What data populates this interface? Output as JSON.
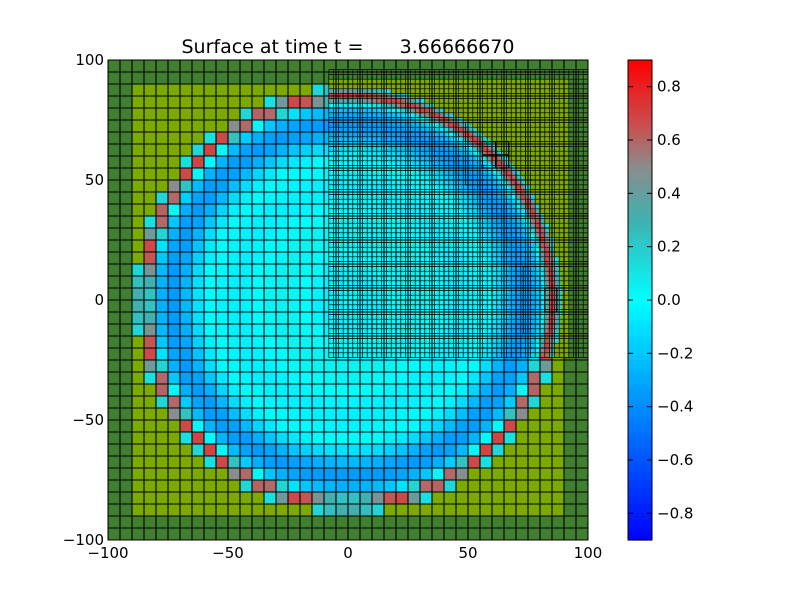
{
  "chart_data": {
    "type": "heatmap",
    "title": "Surface at time t =      3.66666670",
    "xlabel": "",
    "ylabel": "",
    "xlim": [
      -100,
      100
    ],
    "ylim": [
      -100,
      100
    ],
    "x_ticks": [
      -100,
      -50,
      0,
      50,
      100
    ],
    "y_ticks": [
      -100,
      -50,
      0,
      50,
      100
    ],
    "x_tick_labels": [
      "−100",
      "−50",
      "0",
      "50",
      "100"
    ],
    "y_tick_labels": [
      "−100",
      "−50",
      "0",
      "50",
      "100"
    ],
    "colorbar": {
      "vmin": -0.9,
      "vmax": 0.9,
      "ticks": [
        0.8,
        0.6,
        0.4,
        0.2,
        0.0,
        -0.2,
        -0.4,
        -0.6,
        -0.8
      ],
      "tick_labels": [
        "0.8",
        "0.6",
        "0.4",
        "0.2",
        "0.0",
        "−0.2",
        "−0.4",
        "−0.6",
        "−0.8"
      ],
      "colormap": [
        [
          -0.9,
          "#0000ff"
        ],
        [
          -0.3,
          "#00aaff"
        ],
        [
          0.0,
          "#00ffff"
        ],
        [
          0.3,
          "#40b0b0"
        ],
        [
          0.5,
          "#8c8c8c"
        ],
        [
          0.65,
          "#c85050"
        ],
        [
          0.9,
          "#ff0000"
        ]
      ]
    },
    "field": {
      "ring_center": [
        0,
        0
      ],
      "ring_radius": 85,
      "ring_width": 4,
      "crest_amplitude": 0.75,
      "interior_trough": -0.35,
      "land_near_color": "#7caa00",
      "land_far_color": "#3f7f2f"
    },
    "grids": [
      {
        "level": 1,
        "x": [
          -100,
          100
        ],
        "y": [
          -100,
          100
        ],
        "cell": 5
      },
      {
        "level": 2,
        "x": [
          -8,
          100
        ],
        "y": [
          -24,
          96
        ],
        "cell": 2
      },
      {
        "level": 3,
        "x": [
          49,
          74
        ],
        "y": [
          48,
          74
        ],
        "cell": 0.5
      },
      {
        "level": 3,
        "x": [
          73,
          95
        ],
        "y": [
          -14,
          14
        ],
        "cell": 0.5
      },
      {
        "level": 4,
        "x": [
          56,
          67
        ],
        "y": [
          55,
          66
        ],
        "cell": 5.5
      },
      {
        "level": 4,
        "x": [
          82,
          90
        ],
        "y": [
          -5,
          5
        ],
        "cell": 5
      }
    ]
  }
}
